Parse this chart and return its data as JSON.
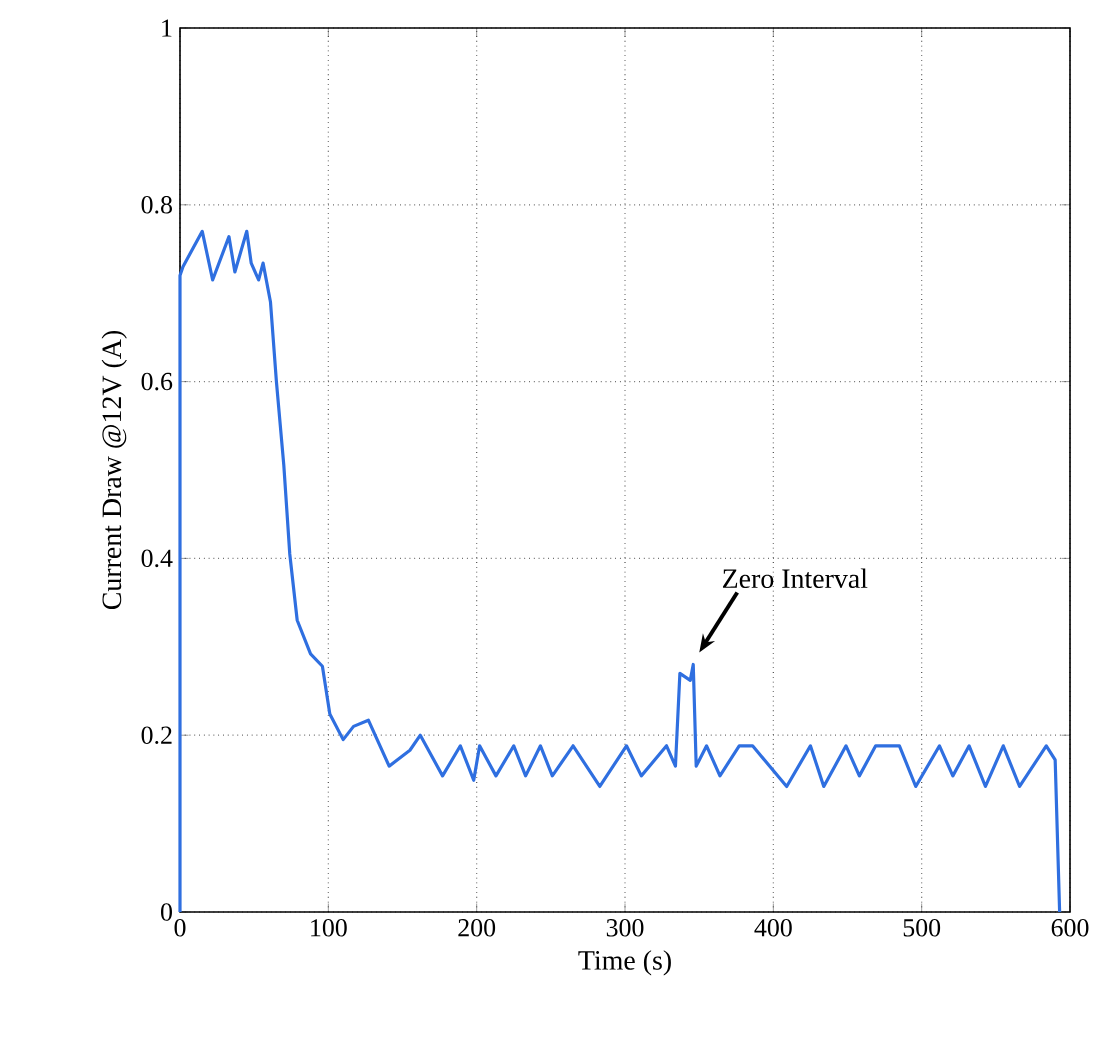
{
  "chart_data": {
    "type": "line",
    "xlabel": "Time (s)",
    "ylabel": "Current Draw @12V (A)",
    "xlim": [
      0,
      600
    ],
    "ylim": [
      0,
      1
    ],
    "xticks": [
      0,
      100,
      200,
      300,
      400,
      500,
      600
    ],
    "yticks": [
      0,
      0.2,
      0.4,
      0.6,
      0.8,
      1
    ],
    "grid": true,
    "line_style": "solid",
    "annotations": [
      {
        "text": "Zero Interval",
        "x": 346,
        "y": 0.28
      }
    ],
    "series": [
      {
        "color": "#2f6fe0",
        "x": [
          0,
          0,
          2,
          15,
          22,
          33,
          37,
          45,
          48,
          53,
          56,
          61,
          65,
          70,
          74,
          79,
          88,
          96,
          101,
          110,
          117,
          127,
          141,
          155,
          162,
          177,
          189,
          198,
          202,
          213,
          225,
          233,
          243,
          251,
          265,
          283,
          301,
          311,
          328,
          334,
          337,
          344,
          346,
          348,
          355,
          364,
          377,
          386,
          409,
          425,
          434,
          449,
          458,
          469,
          485,
          496,
          512,
          521,
          532,
          543,
          555,
          566,
          584,
          590,
          593
        ],
        "values": [
          0,
          0.72,
          0.73,
          0.77,
          0.715,
          0.764,
          0.724,
          0.77,
          0.734,
          0.715,
          0.734,
          0.69,
          0.6,
          0.505,
          0.405,
          0.33,
          0.292,
          0.278,
          0.224,
          0.195,
          0.21,
          0.217,
          0.165,
          0.183,
          0.2,
          0.154,
          0.188,
          0.149,
          0.188,
          0.154,
          0.188,
          0.154,
          0.188,
          0.154,
          0.188,
          0.142,
          0.188,
          0.154,
          0.188,
          0.165,
          0.27,
          0.262,
          0.28,
          0.165,
          0.188,
          0.154,
          0.188,
          0.188,
          0.142,
          0.188,
          0.142,
          0.188,
          0.154,
          0.188,
          0.188,
          0.142,
          0.188,
          0.154,
          0.188,
          0.142,
          0.188,
          0.142,
          0.188,
          0.172,
          0
        ]
      }
    ]
  }
}
